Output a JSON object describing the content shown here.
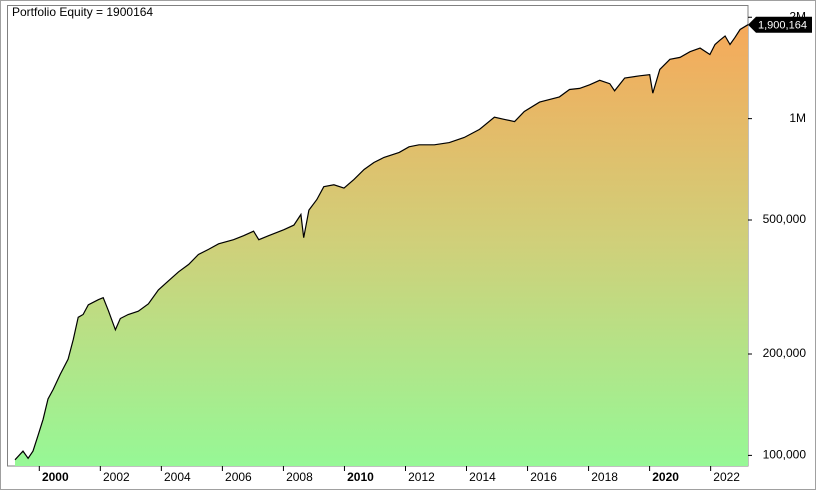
{
  "chart_data": {
    "type": "area",
    "title": "Portfolio Equity = 1900164",
    "log_scale": true,
    "grid": false,
    "xlim": [
      1998.45,
      2022.7
    ],
    "xticks": [
      2000,
      2002,
      2004,
      2006,
      2008,
      2010,
      2012,
      2014,
      2016,
      2018,
      2020,
      2022
    ],
    "ylim": [
      93000,
      2160000
    ],
    "yticks": [
      {
        "value": 100000,
        "label": "100,000"
      },
      {
        "value": 200000,
        "label": "200,000"
      },
      {
        "value": 500000,
        "label": "500,000"
      },
      {
        "value": 1000000,
        "label": "1M"
      },
      {
        "value": 2000000,
        "label": "2M"
      }
    ],
    "x": [
      1998.68,
      1998.94,
      1999.11,
      1999.27,
      1999.44,
      1999.6,
      1999.76,
      1999.93,
      2000.16,
      2000.42,
      2000.59,
      2000.75,
      2000.91,
      2001.08,
      2001.41,
      2001.57,
      2001.74,
      2001.97,
      2002.13,
      2002.39,
      2002.72,
      2003.05,
      2003.38,
      2003.71,
      2004.04,
      2004.37,
      2004.69,
      2005.02,
      2005.35,
      2005.84,
      2006.17,
      2006.5,
      2006.67,
      2006.99,
      2007.49,
      2007.82,
      2008.05,
      2008.14,
      2008.31,
      2008.57,
      2008.8,
      2009.13,
      2009.46,
      2009.79,
      2010.12,
      2010.44,
      2010.77,
      2011.27,
      2011.59,
      2011.92,
      2012.42,
      2012.91,
      2013.4,
      2013.9,
      2014.39,
      2014.72,
      2015.05,
      2015.37,
      2015.87,
      2016.52,
      2016.85,
      2017.18,
      2017.51,
      2017.84,
      2018.17,
      2018.33,
      2018.66,
      2019.15,
      2019.48,
      2019.58,
      2019.81,
      2020.14,
      2020.47,
      2020.8,
      2021.13,
      2021.45,
      2021.62,
      2021.78,
      2021.95,
      2022.11,
      2022.27,
      2022.44,
      2022.7
    ],
    "series": [
      {
        "name": "Portfolio Equity",
        "color": "#000000",
        "values": [
          97000,
          103000,
          98000,
          103000,
          115000,
          128000,
          147000,
          157000,
          174000,
          193000,
          221000,
          257000,
          262000,
          280000,
          290000,
          294000,
          269000,
          236000,
          255000,
          262000,
          268000,
          282000,
          310000,
          330000,
          351000,
          369000,
          395000,
          409000,
          425000,
          437000,
          449000,
          463000,
          437000,
          449000,
          468000,
          483000,
          519000,
          443000,
          535000,
          575000,
          628000,
          636000,
          622000,
          660000,
          706000,
          741000,
          767000,
          794000,
          825000,
          836000,
          836000,
          849000,
          879000,
          929000,
          1010000,
          995000,
          980000,
          1050000,
          1120000,
          1160000,
          1220000,
          1230000,
          1260000,
          1300000,
          1270000,
          1210000,
          1320000,
          1340000,
          1350000,
          1190000,
          1400000,
          1500000,
          1520000,
          1580000,
          1620000,
          1550000,
          1660000,
          1710000,
          1760000,
          1660000,
          1740000,
          1840000,
          1900164
        ]
      }
    ],
    "last_value_label": "1,900,164"
  }
}
